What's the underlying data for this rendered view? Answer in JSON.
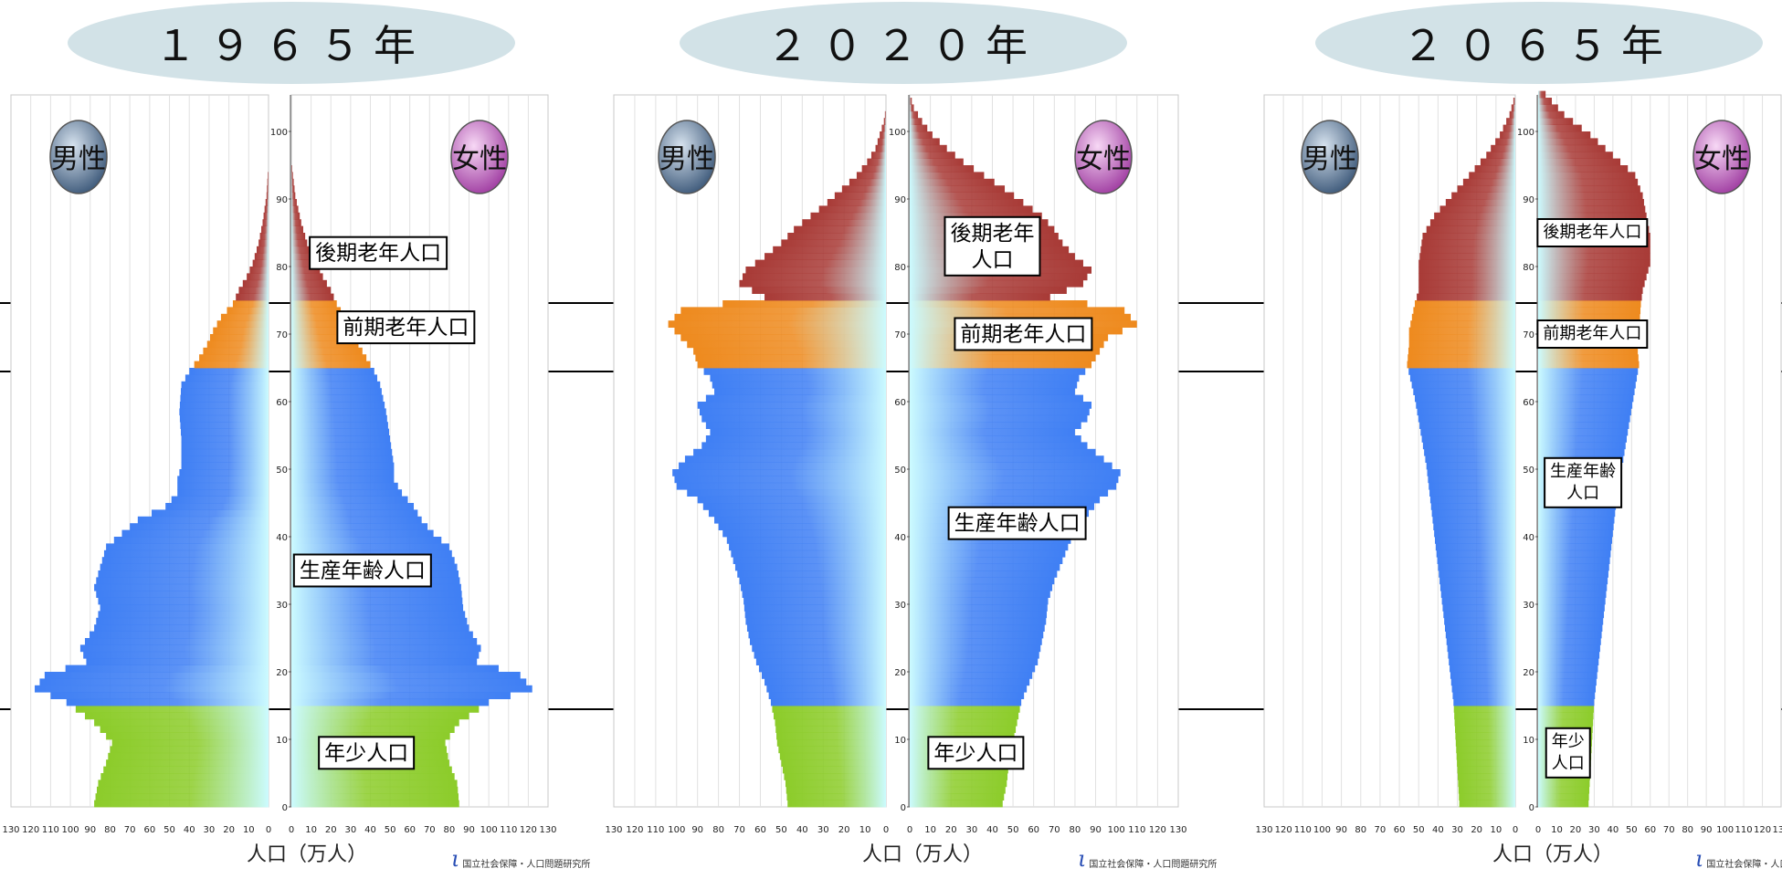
{
  "chart_data": [
    {
      "type": "population-pyramid",
      "title": "１９６５年",
      "xlabel": "人口（万人）",
      "xlim": [
        0,
        130
      ],
      "ylim": [
        0,
        105
      ],
      "sex_labels": {
        "male": "男性",
        "female": "女性"
      },
      "age_groups": [
        {
          "name": "後期老年人口",
          "ages": [
            75,
            105
          ],
          "color": "#a83a36"
        },
        {
          "name": "前期老年人口",
          "ages": [
            65,
            74
          ],
          "color": "#ee8a1e"
        },
        {
          "name": "生産年齢人口",
          "ages": [
            15,
            64
          ],
          "color": "#3f7ff4"
        },
        {
          "name": "年少人口",
          "ages": [
            0,
            14
          ],
          "color": "#8ccc2a"
        }
      ],
      "boundaries": [
        15,
        65,
        75
      ],
      "male": [
        [
          0,
          88
        ],
        [
          3,
          86
        ],
        [
          6,
          82
        ],
        [
          9,
          79
        ],
        [
          12,
          88
        ],
        [
          15,
          102
        ],
        [
          17,
          118
        ],
        [
          19,
          113
        ],
        [
          21,
          92
        ],
        [
          23,
          95
        ],
        [
          26,
          88
        ],
        [
          29,
          85
        ],
        [
          32,
          88
        ],
        [
          35,
          85
        ],
        [
          38,
          82
        ],
        [
          40,
          74
        ],
        [
          42,
          66
        ],
        [
          44,
          52
        ],
        [
          46,
          46
        ],
        [
          48,
          46
        ],
        [
          50,
          44
        ],
        [
          54,
          44
        ],
        [
          58,
          45
        ],
        [
          62,
          44
        ],
        [
          64,
          40
        ],
        [
          66,
          35
        ],
        [
          68,
          31
        ],
        [
          70,
          28
        ],
        [
          72,
          24
        ],
        [
          74,
          18
        ],
        [
          76,
          15
        ],
        [
          78,
          11
        ],
        [
          80,
          8
        ],
        [
          83,
          5
        ],
        [
          86,
          3
        ],
        [
          90,
          1
        ],
        [
          95,
          0
        ]
      ],
      "female": [
        [
          0,
          85
        ],
        [
          3,
          84
        ],
        [
          6,
          80
        ],
        [
          9,
          78
        ],
        [
          12,
          85
        ],
        [
          15,
          100
        ],
        [
          17,
          122
        ],
        [
          19,
          116
        ],
        [
          21,
          94
        ],
        [
          23,
          96
        ],
        [
          26,
          90
        ],
        [
          29,
          87
        ],
        [
          32,
          86
        ],
        [
          35,
          84
        ],
        [
          38,
          80
        ],
        [
          40,
          72
        ],
        [
          42,
          66
        ],
        [
          44,
          62
        ],
        [
          46,
          56
        ],
        [
          48,
          52
        ],
        [
          50,
          52
        ],
        [
          54,
          50
        ],
        [
          58,
          48
        ],
        [
          62,
          45
        ],
        [
          64,
          42
        ],
        [
          66,
          38
        ],
        [
          68,
          34
        ],
        [
          70,
          30
        ],
        [
          72,
          27
        ],
        [
          74,
          23
        ],
        [
          76,
          20
        ],
        [
          78,
          16
        ],
        [
          80,
          13
        ],
        [
          83,
          8
        ],
        [
          86,
          5
        ],
        [
          90,
          2
        ],
        [
          95,
          0
        ]
      ],
      "annotations": [
        {
          "text": "後期老年人口",
          "age": 82,
          "x": 44,
          "lines": [
            "後期老年人口"
          ]
        },
        {
          "text": "前期老年人口",
          "age": 71,
          "x": 58,
          "lines": [
            "前期老年人口"
          ]
        },
        {
          "text": "生産年齢人口",
          "age": 35,
          "x": 36,
          "lines": [
            "生産年齢人口"
          ]
        },
        {
          "text": "年少人口",
          "age": 8,
          "x": 38,
          "lines": [
            "年少人口"
          ]
        }
      ]
    },
    {
      "type": "population-pyramid",
      "title": "２０２０年",
      "xlabel": "人口（万人）",
      "xlim": [
        0,
        130
      ],
      "ylim": [
        0,
        105
      ],
      "sex_labels": {
        "male": "男性",
        "female": "女性"
      },
      "age_groups": [
        {
          "name": "後期老年人口",
          "ages": [
            75,
            105
          ],
          "color": "#a83a36"
        },
        {
          "name": "前期老年人口",
          "ages": [
            65,
            74
          ],
          "color": "#ee8a1e"
        },
        {
          "name": "生産年齢人口",
          "ages": [
            15,
            64
          ],
          "color": "#3f7ff4"
        },
        {
          "name": "年少人口",
          "ages": [
            0,
            14
          ],
          "color": "#8ccc2a"
        }
      ],
      "boundaries": [
        15,
        65,
        75
      ],
      "male": [
        [
          0,
          47
        ],
        [
          3,
          48
        ],
        [
          6,
          50
        ],
        [
          9,
          52
        ],
        [
          12,
          53
        ],
        [
          15,
          55
        ],
        [
          18,
          58
        ],
        [
          21,
          62
        ],
        [
          24,
          65
        ],
        [
          27,
          67
        ],
        [
          30,
          68
        ],
        [
          33,
          70
        ],
        [
          36,
          73
        ],
        [
          39,
          76
        ],
        [
          42,
          82
        ],
        [
          45,
          90
        ],
        [
          47,
          100
        ],
        [
          49,
          102
        ],
        [
          51,
          96
        ],
        [
          53,
          88
        ],
        [
          55,
          84
        ],
        [
          57,
          88
        ],
        [
          59,
          90
        ],
        [
          61,
          82
        ],
        [
          63,
          84
        ],
        [
          65,
          90
        ],
        [
          67,
          92
        ],
        [
          69,
          98
        ],
        [
          71,
          104
        ],
        [
          73,
          98
        ],
        [
          75,
          58
        ],
        [
          77,
          70
        ],
        [
          79,
          67
        ],
        [
          81,
          58
        ],
        [
          83,
          50
        ],
        [
          85,
          44
        ],
        [
          87,
          36
        ],
        [
          89,
          28
        ],
        [
          91,
          21
        ],
        [
          93,
          14
        ],
        [
          95,
          9
        ],
        [
          97,
          5
        ],
        [
          99,
          3
        ],
        [
          101,
          1
        ],
        [
          103,
          0
        ]
      ],
      "female": [
        [
          0,
          45
        ],
        [
          3,
          47
        ],
        [
          6,
          48
        ],
        [
          9,
          50
        ],
        [
          12,
          52
        ],
        [
          15,
          54
        ],
        [
          18,
          58
        ],
        [
          21,
          62
        ],
        [
          24,
          64
        ],
        [
          27,
          66
        ],
        [
          30,
          67
        ],
        [
          33,
          70
        ],
        [
          36,
          74
        ],
        [
          39,
          78
        ],
        [
          42,
          84
        ],
        [
          45,
          92
        ],
        [
          47,
          100
        ],
        [
          49,
          102
        ],
        [
          51,
          94
        ],
        [
          53,
          86
        ],
        [
          55,
          80
        ],
        [
          57,
          86
        ],
        [
          59,
          88
        ],
        [
          61,
          80
        ],
        [
          63,
          82
        ],
        [
          65,
          88
        ],
        [
          67,
          92
        ],
        [
          69,
          96
        ],
        [
          71,
          110
        ],
        [
          73,
          104
        ],
        [
          75,
          68
        ],
        [
          77,
          84
        ],
        [
          79,
          88
        ],
        [
          81,
          80
        ],
        [
          83,
          74
        ],
        [
          85,
          70
        ],
        [
          87,
          64
        ],
        [
          89,
          55
        ],
        [
          91,
          46
        ],
        [
          93,
          36
        ],
        [
          95,
          26
        ],
        [
          97,
          18
        ],
        [
          99,
          11
        ],
        [
          101,
          6
        ],
        [
          103,
          2
        ],
        [
          105,
          0
        ]
      ],
      "annotations": [
        {
          "text": "後期老年人口",
          "age": 83,
          "x": 40,
          "lines": [
            "後期老年",
            "人口"
          ]
        },
        {
          "text": "前期老年人口",
          "age": 70,
          "x": 55,
          "lines": [
            "前期老年人口"
          ]
        },
        {
          "text": "生産年齢人口",
          "age": 42,
          "x": 52,
          "lines": [
            "生産年齢人口"
          ]
        },
        {
          "text": "年少人口",
          "age": 8,
          "x": 32,
          "lines": [
            "年少人口"
          ]
        }
      ]
    },
    {
      "type": "population-pyramid",
      "title": "２０６５年",
      "xlabel": "人口（万人）",
      "xlim": [
        0,
        130
      ],
      "ylim": [
        0,
        105
      ],
      "sex_labels": {
        "male": "男性",
        "female": "女性"
      },
      "age_groups": [
        {
          "name": "後期老年人口",
          "ages": [
            75,
            105
          ],
          "color": "#a83a36"
        },
        {
          "name": "前期老年人口",
          "ages": [
            65,
            74
          ],
          "color": "#ee8a1e"
        },
        {
          "name": "生産年齢人口",
          "ages": [
            15,
            64
          ],
          "color": "#3f7ff4"
        },
        {
          "name": "年少人口",
          "ages": [
            0,
            14
          ],
          "color": "#8ccc2a"
        }
      ],
      "boundaries": [
        15,
        65,
        75
      ],
      "male": [
        [
          0,
          29
        ],
        [
          5,
          30
        ],
        [
          10,
          31
        ],
        [
          15,
          32
        ],
        [
          20,
          34
        ],
        [
          25,
          36
        ],
        [
          30,
          38
        ],
        [
          35,
          40
        ],
        [
          40,
          42
        ],
        [
          45,
          44
        ],
        [
          50,
          46
        ],
        [
          55,
          49
        ],
        [
          60,
          52
        ],
        [
          65,
          56
        ],
        [
          68,
          55
        ],
        [
          70,
          55
        ],
        [
          74,
          52
        ],
        [
          76,
          50
        ],
        [
          80,
          50
        ],
        [
          84,
          48
        ],
        [
          87,
          42
        ],
        [
          90,
          33
        ],
        [
          93,
          24
        ],
        [
          96,
          15
        ],
        [
          99,
          8
        ],
        [
          102,
          3
        ],
        [
          105,
          0
        ]
      ],
      "female": [
        [
          0,
          27
        ],
        [
          5,
          28
        ],
        [
          10,
          29
        ],
        [
          15,
          30
        ],
        [
          20,
          32
        ],
        [
          25,
          34
        ],
        [
          30,
          36
        ],
        [
          35,
          38
        ],
        [
          40,
          40
        ],
        [
          45,
          42
        ],
        [
          50,
          45
        ],
        [
          55,
          48
        ],
        [
          60,
          51
        ],
        [
          65,
          54
        ],
        [
          68,
          53
        ],
        [
          70,
          54
        ],
        [
          74,
          55
        ],
        [
          76,
          56
        ],
        [
          80,
          60
        ],
        [
          84,
          60
        ],
        [
          87,
          58
        ],
        [
          90,
          56
        ],
        [
          93,
          52
        ],
        [
          96,
          40
        ],
        [
          99,
          28
        ],
        [
          102,
          14
        ],
        [
          105,
          4
        ]
      ],
      "annotations": [
        {
          "text": "後期老年人口",
          "age": 85,
          "x": 29,
          "lines": [
            "後期老年人口"
          ]
        },
        {
          "text": "前期老年人口",
          "age": 70,
          "x": 29,
          "lines": [
            "前期老年人口"
          ]
        },
        {
          "text": "生産年齢人口",
          "age": 48,
          "x": 24,
          "lines": [
            "生産年齢",
            "人口"
          ]
        },
        {
          "text": "年少人口",
          "age": 8,
          "x": 16,
          "lines": [
            "年少",
            "人口"
          ]
        }
      ]
    }
  ],
  "logo_text": "国立社会保障・人口問題研究所",
  "logo_mark": "ipss"
}
